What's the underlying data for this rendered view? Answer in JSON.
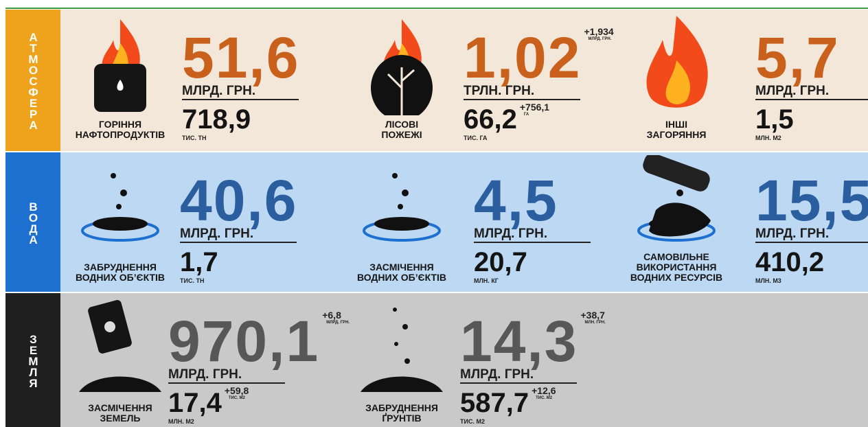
{
  "sections": [
    {
      "label": "АТМОСФЕРА",
      "items": [
        {
          "name": [
            "ГОРІННЯ",
            "НАФТОПРОДУКТІВ"
          ],
          "value": "51,6",
          "unit": "МЛРД. ГРН.",
          "sub_value": "718,9",
          "sub_unit": "ТИС. ТН"
        },
        {
          "name": [
            "ЛІСОВІ",
            "ПОЖЕЖІ"
          ],
          "value": "1,02",
          "value_extra": "+1,934",
          "value_extra_unit": "МЛРД. ГРН.",
          "unit": "ТРЛН. ГРН.",
          "sub_value": "66,2",
          "sub_extra": "+756,1",
          "sub_extra_unit": "ГА",
          "sub_unit": "ТИС. ГА"
        },
        {
          "name": [
            "ІНШІ",
            "ЗАГОРЯННЯ"
          ],
          "value": "5,7",
          "unit": "МЛРД. ГРН.",
          "sub_value": "1,5",
          "sub_unit": "МЛН. М2"
        }
      ]
    },
    {
      "label": "ВОДА",
      "items": [
        {
          "name": [
            "ЗАБРУДНЕННЯ",
            "ВОДНИХ ОБ’ЄКТІВ"
          ],
          "value": "40,6",
          "unit": "МЛРД. ГРН.",
          "sub_value": "1,7",
          "sub_unit": "ТИС. ТН"
        },
        {
          "name": [
            "ЗАСМІЧЕННЯ",
            "ВОДНИХ ОБ’ЄКТІВ"
          ],
          "value": "4,5",
          "unit": "МЛРД. ГРН.",
          "sub_value": "20,7",
          "sub_unit": "МЛН. КГ"
        },
        {
          "name": [
            "САМОВІЛЬНЕ",
            "ВИКОРИСТАННЯ",
            "ВОДНИХ РЕСУРСІВ"
          ],
          "value": "15,5",
          "unit": "МЛРД. ГРН.",
          "sub_value": "410,2",
          "sub_unit": "МЛН. М3"
        }
      ]
    },
    {
      "label": "ЗЕМЛЯ",
      "items": [
        {
          "name": [
            "ЗАСМІЧЕННЯ",
            "ЗЕМЕЛЬ"
          ],
          "value": "970,1",
          "value_extra": "+6,8",
          "value_extra_unit": "МЛРД. ГРН.",
          "unit": "МЛРД. ГРН.",
          "sub_value": "17,4",
          "sub_extra": "+59,8",
          "sub_extra_unit": "ТИС. М2",
          "sub_unit": "МЛН. М2"
        },
        {
          "name": [
            "ЗАБРУДНЕННЯ",
            "ҐРУНТІВ"
          ],
          "value": "14,3",
          "value_extra": "+38,7",
          "value_extra_unit": "МЛН. ГРН.",
          "unit": "МЛРД. ГРН.",
          "sub_value": "587,7",
          "sub_extra": "+12,6",
          "sub_extra_unit": "ТИС. М2",
          "sub_unit": "ТИС. М2"
        }
      ]
    }
  ]
}
